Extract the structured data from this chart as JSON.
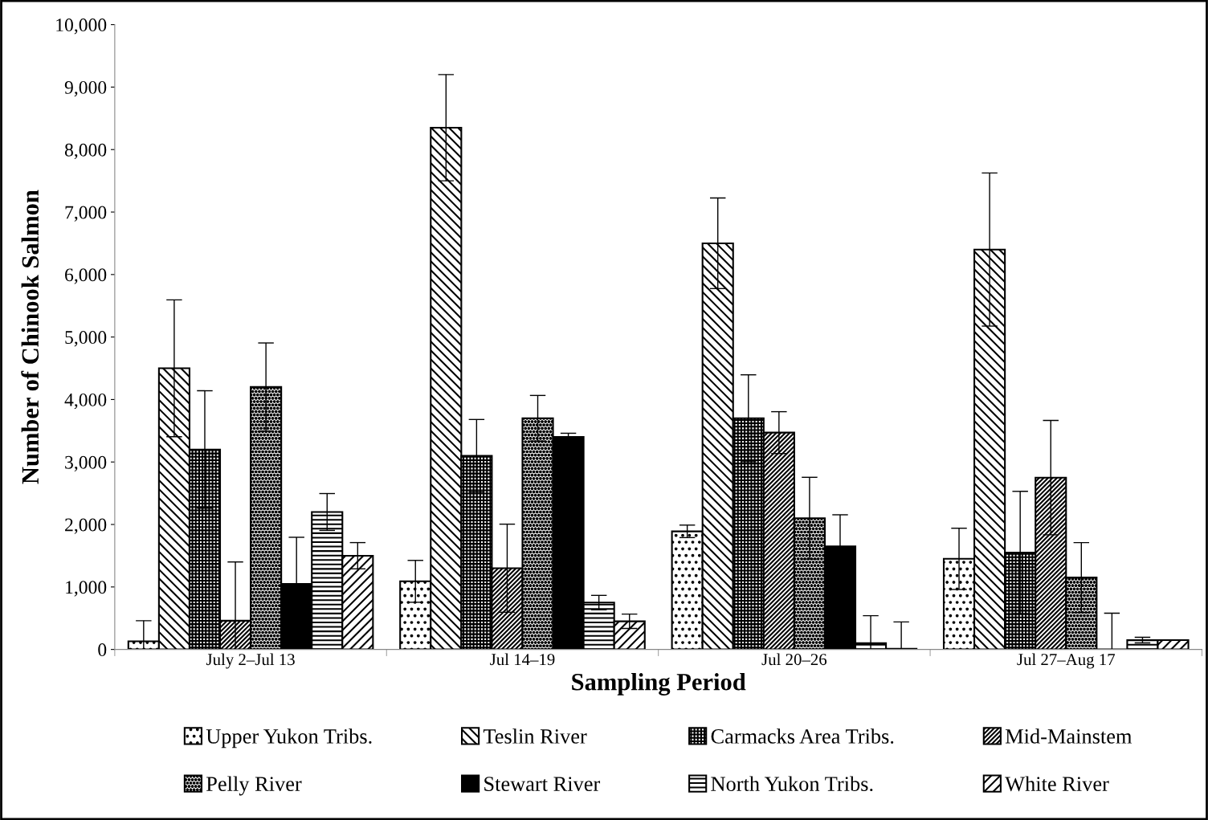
{
  "chart_data": {
    "type": "bar",
    "xlabel": "Sampling Period",
    "ylabel": "Number of Chinook Salmon",
    "categories": [
      "July 2–Jul 13",
      "Jul 14–19",
      "Jul 20–26",
      "Jul 27–Aug 17"
    ],
    "series": [
      {
        "name": "Upper Yukon Tribs.",
        "color": "#000000",
        "values": [
          130,
          1090,
          1890,
          1450
        ],
        "errors": [
          [
            0,
            460
          ],
          335,
          100,
          490
        ]
      },
      {
        "name": "Teslin River",
        "color": "#000000",
        "values": [
          4500,
          8350,
          6500,
          6400
        ],
        "errors": [
          1095,
          850,
          725,
          1225
        ]
      },
      {
        "name": "Carmacks Area Tribs.",
        "color": "#000000",
        "values": [
          3200,
          3100,
          3700,
          1550
        ],
        "errors": [
          940,
          580,
          695,
          980
        ]
      },
      {
        "name": "Mid-Mainstem",
        "color": "#000000",
        "values": [
          460,
          1300,
          3470,
          2750
        ],
        "errors": [
          [
            0,
            1400
          ],
          705,
          335,
          915
        ]
      },
      {
        "name": "Pelly River",
        "color": "#000000",
        "values": [
          4200,
          3700,
          2100,
          1150
        ],
        "errors": [
          705,
          365,
          655,
          560
        ]
      },
      {
        "name": "Stewart River",
        "color": "#000000",
        "values": [
          1050,
          3400,
          1650,
          0
        ],
        "errors": [
          745,
          60,
          505,
          [
            0,
            580
          ]
        ]
      },
      {
        "name": "North Yukon Tribs.",
        "color": "#000000",
        "values": [
          2200,
          750,
          100,
          150
        ],
        "errors": [
          295,
          115,
          [
            0,
            540
          ],
          45
        ]
      },
      {
        "name": "White River",
        "color": "#000000",
        "values": [
          1500,
          450,
          10,
          150
        ],
        "errors": [
          210,
          115,
          [
            0,
            440
          ],
          null
        ]
      }
    ],
    "ylim": [
      0,
      10000
    ],
    "yticks": [
      {
        "value": 0,
        "label": "0"
      },
      {
        "value": 1000,
        "label": "1,000"
      },
      {
        "value": 2000,
        "label": "2,000"
      },
      {
        "value": 3000,
        "label": "3,000"
      },
      {
        "value": 4000,
        "label": "4,000"
      },
      {
        "value": 5000,
        "label": "5,000"
      },
      {
        "value": 6000,
        "label": "6,000"
      },
      {
        "value": 7000,
        "label": "7,000"
      },
      {
        "value": 8000,
        "label": "8,000"
      },
      {
        "value": 9000,
        "label": "9,000"
      },
      {
        "value": 10000,
        "label": "10,000"
      }
    ],
    "grid": false,
    "legend": "bottom"
  }
}
